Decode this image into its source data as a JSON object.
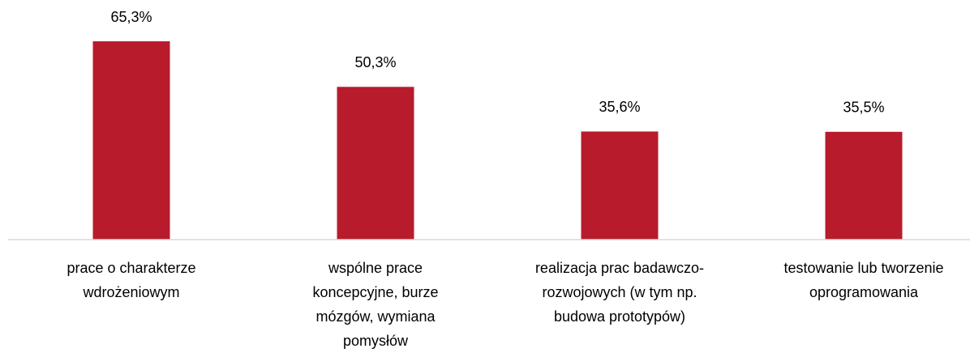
{
  "chart_data": {
    "type": "bar",
    "categories": [
      "prace o charakterze wdrożeniowym",
      "wspólne prace koncepcyjne, burze mózgów, wymiana pomysłów",
      "realizacja prac badawczo-rozwojowych (w tym np. budowa prototypów)",
      "testowanie lub tworzenie oprogramowania"
    ],
    "values": [
      65.3,
      50.3,
      35.6,
      35.5
    ],
    "value_labels": [
      "65,3%",
      "50,3%",
      "35,6%",
      "35,5%"
    ],
    "color": "#b81c2c",
    "ylim": [
      0,
      70
    ]
  }
}
